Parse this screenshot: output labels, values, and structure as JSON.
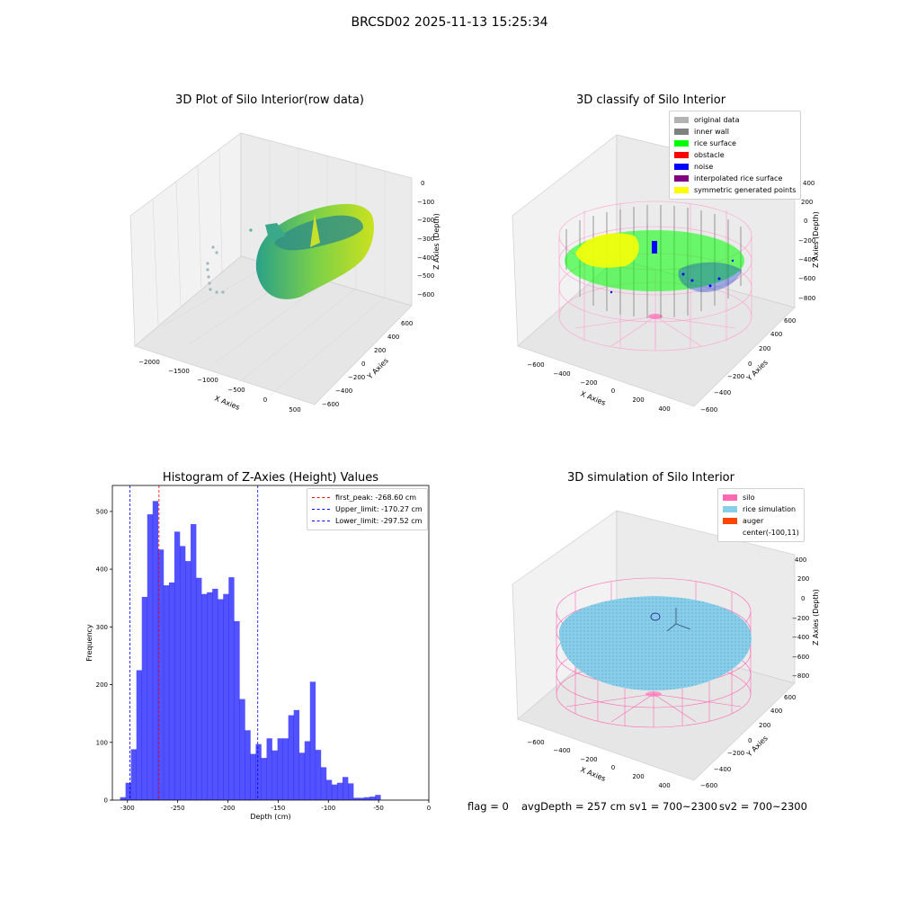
{
  "figure_title": "BRCSD02 2025-11-13 15:25:34",
  "footer": {
    "flag": "flag = 0",
    "avg_depth": "avgDepth = 257 cm",
    "sv1": "sv1 = 700~2300",
    "sv2": "sv2 = 700~2300"
  },
  "colors": {
    "hist_bar": "#0000ff",
    "first_peak": "#ff0000",
    "limits": "#0000ff",
    "silo": "#ff69b4",
    "rice_simulation": "#87ceeb",
    "auger": "#ff4500",
    "original_data": "#b3b3b3",
    "inner_wall": "#808080",
    "rice_surface": "#00ff00",
    "obstacle": "#ff0000",
    "noise": "#0000ff",
    "interpolated": "#800080",
    "symmetric": "#ffff00"
  },
  "chart_data": [
    {
      "type": "scatter",
      "title": "3D Plot of Silo Interior(row data)",
      "xlabel": "X Axies",
      "ylabel": "Y Axies",
      "zlabel": "Z Axies (Depth)",
      "x_ticks": [
        "−2000",
        "−1500",
        "−1000",
        "−500",
        "0",
        "500"
      ],
      "y_ticks": [
        "−600",
        "−400",
        "−200",
        "0",
        "200",
        "400",
        "600"
      ],
      "z_ticks": [
        "0",
        "−100",
        "−200",
        "−300",
        "−400",
        "−500",
        "−600"
      ]
    },
    {
      "type": "scatter",
      "title": "3D classify of Silo Interior",
      "xlabel": "X Axies",
      "ylabel": "Y Axies",
      "zlabel": "Z Axies (Depth)",
      "x_ticks": [
        "−600",
        "−400",
        "−200",
        "0",
        "200",
        "400"
      ],
      "y_ticks": [
        "−600",
        "−400",
        "−200",
        "0",
        "200",
        "400",
        "600"
      ],
      "z_ticks": [
        "400",
        "200",
        "0",
        "−200",
        "−400",
        "−600",
        "−800"
      ],
      "legend": [
        "original data",
        "inner wall",
        "rice surface",
        "obstacle",
        "noise",
        "interpolated rice surface",
        "symmetric generated points"
      ],
      "legend_position": "upper right"
    },
    {
      "type": "bar",
      "title": "Histogram of Z-Axies (Height) Values",
      "xlabel": "Depth (cm)",
      "ylabel": "Frequency",
      "xlim": [
        -315,
        0
      ],
      "ylim": [
        0,
        545
      ],
      "x_ticks": [
        -300,
        -250,
        -200,
        -150,
        -100,
        -50,
        0
      ],
      "y_ticks": [
        0,
        100,
        200,
        300,
        400,
        500
      ],
      "bin_width": 5.4,
      "bin_start": -307.3,
      "values": [
        5,
        30,
        88,
        225,
        352,
        495,
        518,
        434,
        372,
        377,
        465,
        440,
        414,
        478,
        385,
        357,
        360,
        366,
        348,
        357,
        386,
        310,
        175,
        121,
        80,
        97,
        73,
        107,
        86,
        107,
        107,
        147,
        156,
        82,
        102,
        205,
        87,
        57,
        35,
        27,
        30,
        40,
        29,
        4,
        4,
        5,
        6,
        9
      ],
      "vlines": [
        {
          "label": "first_peak: -268.60 cm",
          "x": -268.6,
          "color": "#ff0000"
        },
        {
          "label": "Upper_limit: -170.27 cm",
          "x": -170.27,
          "color": "#0000ff"
        },
        {
          "label": "Lower_limit: -297.52 cm",
          "x": -297.52,
          "color": "#0000ff"
        }
      ],
      "legend_position": "upper right"
    },
    {
      "type": "scatter",
      "title": "3D simulation of Silo Interior",
      "xlabel": "X Axies",
      "ylabel": "Y Axies",
      "zlabel": "Z Axies (Depth)",
      "x_ticks": [
        "−600",
        "−400",
        "−200",
        "0",
        "200",
        "400"
      ],
      "y_ticks": [
        "−600",
        "−400",
        "−200",
        "0",
        "200",
        "400",
        "600"
      ],
      "z_ticks": [
        "400",
        "200",
        "0",
        "−200",
        "−400",
        "−600",
        "−800"
      ],
      "legend": [
        "silo",
        "rice simulation",
        "auger",
        "center(-100,11)"
      ],
      "legend_position": "upper right"
    }
  ]
}
